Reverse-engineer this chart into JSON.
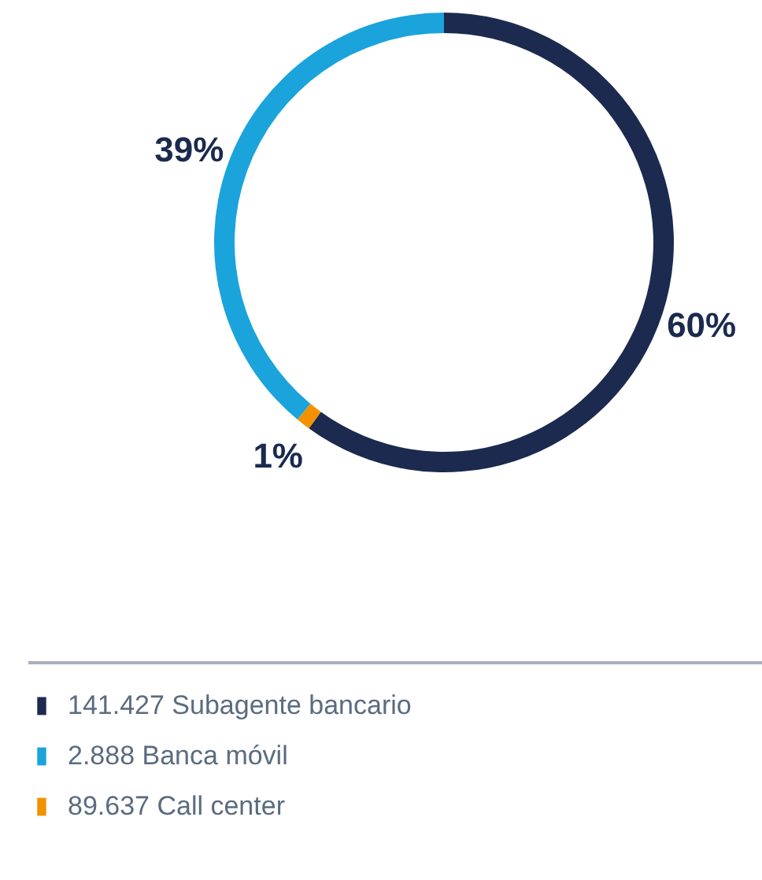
{
  "chart_data": {
    "type": "donut",
    "categories": [
      "141.427 Subagente bancario",
      "2.888 Banca móvil",
      "89.637 Call center"
    ],
    "values": [
      60,
      39,
      1
    ],
    "colors": [
      "#1b2a4e",
      "#1ba3dc",
      "#f39200"
    ],
    "value_labels": [
      "60%",
      "39%",
      "1%"
    ],
    "legend": "bottom left"
  }
}
